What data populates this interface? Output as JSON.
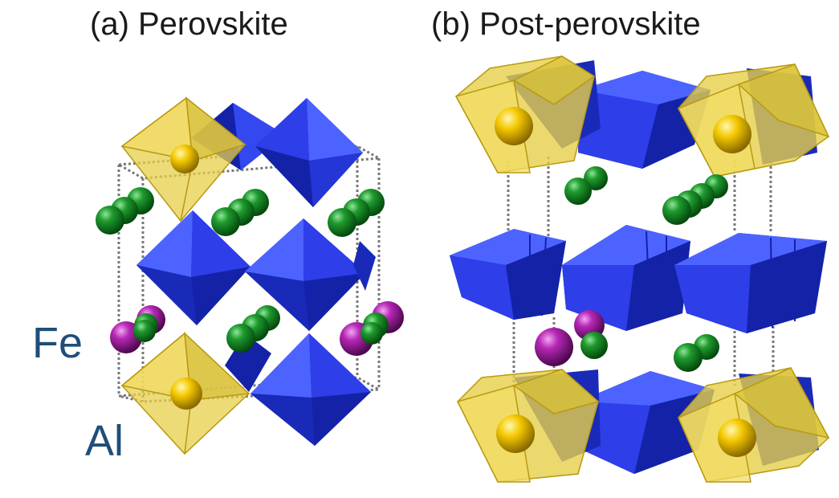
{
  "panels": [
    {
      "title": "(a) Perovskite"
    },
    {
      "title": "(b) Post-perovskite"
    }
  ],
  "labels": {
    "fe": "Fe",
    "al": "Al"
  },
  "colors": {
    "octahedron_blue": "#2e3ee8",
    "octahedron_blue_dark": "#1422a8",
    "octahedron_blue_light": "#4d63ff",
    "al_octahedron": "#e6cf4a",
    "al_atom": "#f0c400",
    "fe_atom": "#a51ea5",
    "oxygen_atom": "#0f7d1e",
    "unit_cell": "#777777",
    "label_text": "#1f4e79"
  }
}
